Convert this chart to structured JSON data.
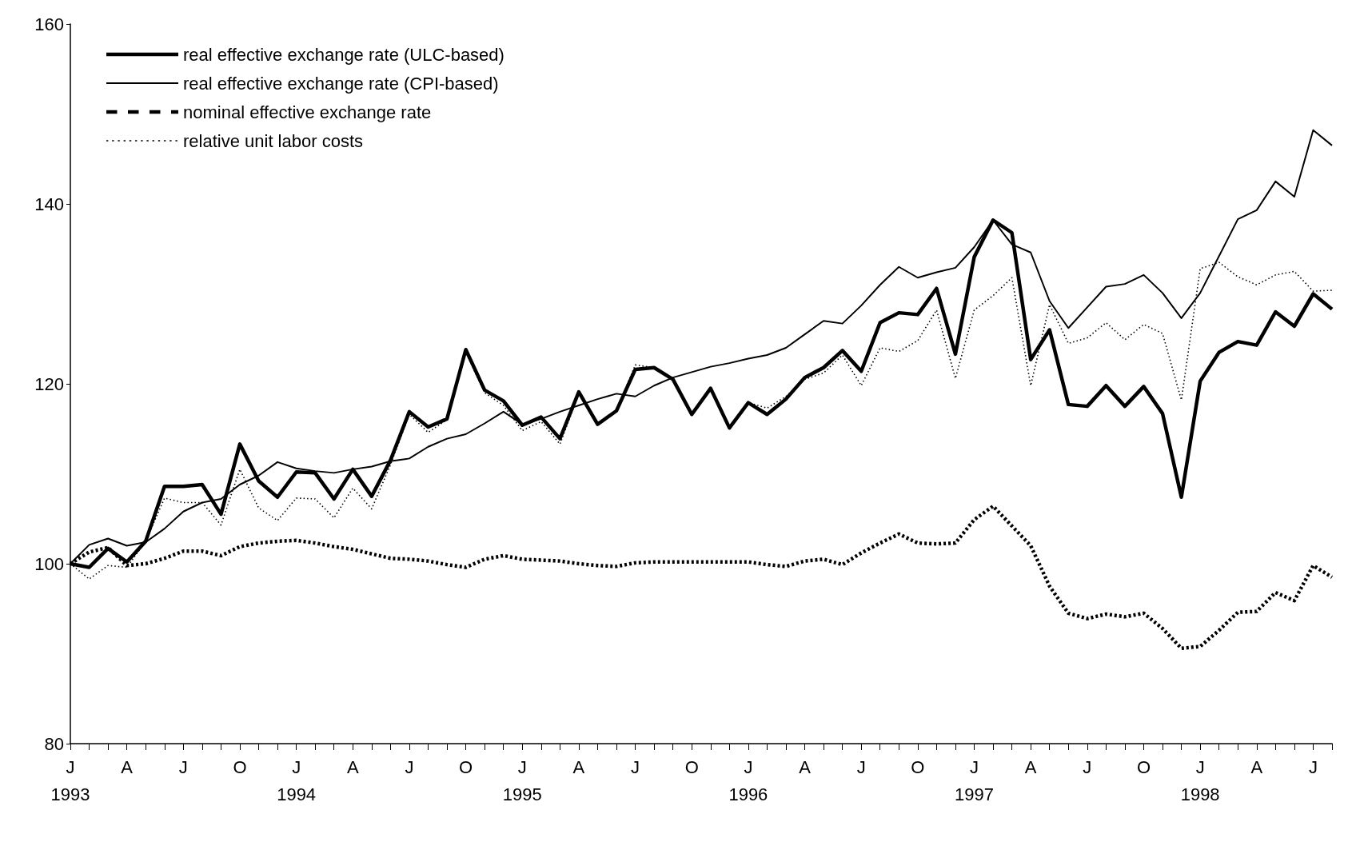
{
  "chart_data": {
    "type": "line",
    "categories": [
      "J\n1993",
      null,
      null,
      "A",
      null,
      null,
      "J",
      null,
      null,
      "O",
      null,
      null,
      "J\n1994",
      null,
      null,
      "A",
      null,
      null,
      "J",
      null,
      null,
      "O",
      null,
      null,
      "J\n1995",
      null,
      null,
      "A",
      null,
      null,
      "J",
      null,
      null,
      "O",
      null,
      null,
      "J\n1996",
      null,
      null,
      "A",
      null,
      null,
      "J",
      null,
      null,
      "O",
      null,
      null,
      "J\n1997",
      null,
      null,
      "A",
      null,
      null,
      "J",
      null,
      null,
      "O",
      null,
      null,
      "J\n1998",
      null,
      null,
      "A",
      null,
      null,
      "J",
      null
    ],
    "series": [
      {
        "name": "real effective exchange rate (ULC-based)",
        "color": "#000000",
        "line_style": "solid",
        "values": [
          100,
          99.6,
          101.7,
          100.2,
          102.5,
          108.6,
          108.6,
          108.8,
          105.5,
          113.3,
          109.2,
          107.4,
          110.2,
          110.1,
          107.2,
          110.5,
          107.5,
          111.5,
          116.9,
          115.2,
          116.1,
          123.8,
          119.3,
          118.1,
          115.4,
          116.3,
          113.9,
          119.1,
          115.5,
          117.0,
          121.6,
          121.8,
          120.5,
          116.6,
          119.5,
          115.1,
          117.9,
          116.6,
          118.3,
          120.7,
          121.8,
          123.7,
          121.4,
          126.8,
          127.9,
          127.7,
          130.6,
          123.3,
          134.1,
          138.2,
          136.8,
          122.7,
          126.0,
          117.7,
          117.5,
          119.8,
          117.5,
          119.7,
          116.7,
          107.4,
          120.3,
          123.5,
          124.7,
          124.3,
          128.0,
          126.4,
          130.0,
          128.3
        ]
      },
      {
        "name": "real effective exchange rate (CPI-based)",
        "color": "#000000",
        "line_style": "solid",
        "values": [
          100,
          102.1,
          102.8,
          102.0,
          102.4,
          103.9,
          105.8,
          106.8,
          107.2,
          108.8,
          109.8,
          111.3,
          110.6,
          110.3,
          110.1,
          110.5,
          110.8,
          111.4,
          111.7,
          113.0,
          113.9,
          114.4,
          115.6,
          116.9,
          115.5,
          116.1,
          116.9,
          117.6,
          118.3,
          118.9,
          118.6,
          119.8,
          120.7,
          121.3,
          121.9,
          122.3,
          122.8,
          123.2,
          124.0,
          125.5,
          127.0,
          126.7,
          128.7,
          131.0,
          133.0,
          131.8,
          132.4,
          132.9,
          135.2,
          138.2,
          135.5,
          134.6,
          129.2,
          126.2,
          128.5,
          130.8,
          131.1,
          132.1,
          130.1,
          127.3,
          130.1,
          134.2,
          138.3,
          139.3,
          142.5,
          140.8,
          148.2,
          146.5
        ]
      },
      {
        "name": "nominal effective exchange rate",
        "color": "#000000",
        "line_style": "dashed",
        "values": [
          100,
          101.3,
          101.8,
          99.8,
          100,
          100.6,
          101.4,
          101.4,
          100.9,
          101.9,
          102.3,
          102.5,
          102.6,
          102.3,
          101.9,
          101.6,
          101.1,
          100.6,
          100.5,
          100.3,
          99.9,
          99.6,
          100.5,
          100.9,
          100.5,
          100.4,
          100.3,
          100.0,
          99.8,
          99.7,
          100.1,
          100.2,
          100.2,
          100.2,
          100.2,
          100.2,
          100.2,
          99.9,
          99.7,
          100.3,
          100.5,
          99.9,
          101.2,
          102.3,
          103.3,
          102.3,
          102.2,
          102.3,
          104.9,
          106.4,
          104.2,
          102.0,
          97.5,
          94.5,
          93.9,
          94.4,
          94.1,
          94.5,
          92.8,
          90.6,
          90.8,
          92.6,
          94.6,
          94.7,
          96.8,
          95.9,
          99.8,
          98.5
        ]
      },
      {
        "name": "relative unit labor costs",
        "color": "#000000",
        "line_style": "dotted",
        "values": [
          100,
          98.3,
          99.8,
          99.6,
          102.5,
          107.3,
          106.8,
          106.8,
          104.3,
          110.5,
          106.2,
          104.8,
          107.3,
          107.2,
          105.1,
          108.4,
          106.1,
          111.0,
          116.6,
          114.6,
          116.0,
          123.5,
          119.0,
          117.6,
          114.8,
          115.8,
          113.3,
          118.9,
          115.5,
          117.0,
          122.1,
          121.8,
          120.5,
          116.6,
          119.5,
          115.1,
          117.9,
          117.3,
          118.6,
          120.5,
          121.2,
          123.2,
          119.8,
          124.0,
          123.6,
          124.8,
          128.2,
          120.6,
          128.2,
          129.8,
          131.8,
          119.8,
          128.8,
          124.5,
          125.1,
          126.8,
          124.9,
          126.6,
          125.6,
          118.2,
          132.8,
          133.5,
          131.9,
          131.0,
          132.1,
          132.5,
          130.3,
          130.4
        ]
      }
    ],
    "ylim": [
      80,
      160
    ],
    "yticks": [
      80,
      100,
      120,
      140,
      160
    ],
    "legend": "top left",
    "marker": "none"
  }
}
